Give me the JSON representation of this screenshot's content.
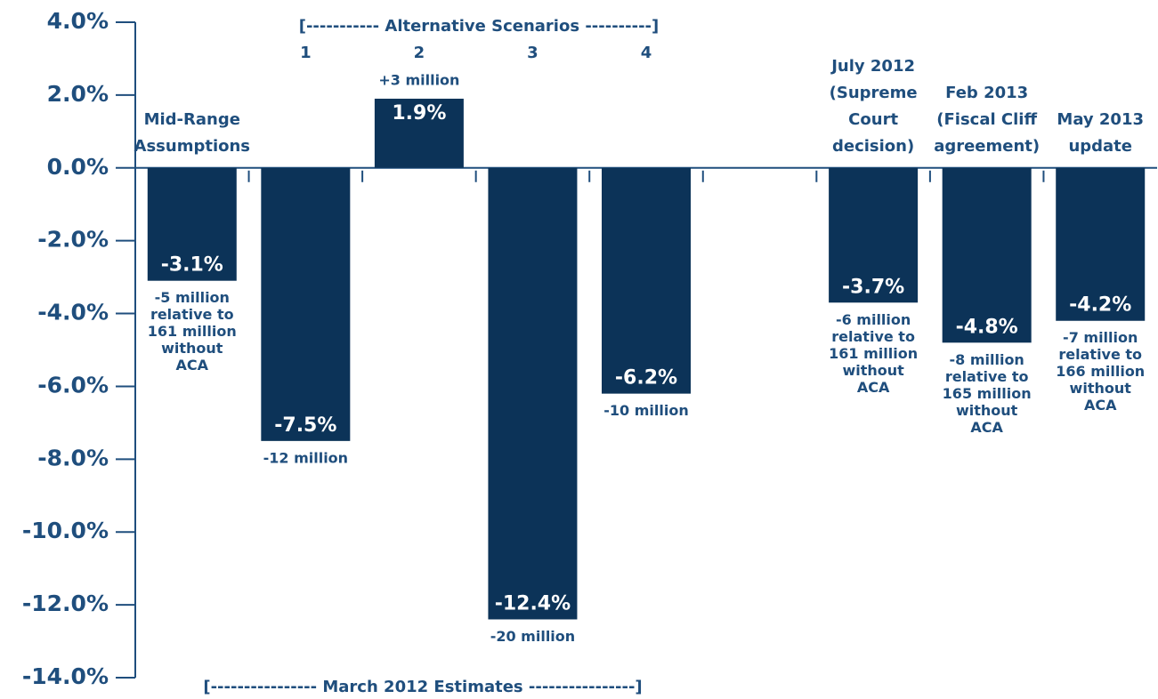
{
  "chart_data": {
    "type": "bar",
    "categories": [
      [
        "Mid-Range",
        "Assumptions"
      ],
      [
        "1"
      ],
      [
        "2"
      ],
      [
        "3"
      ],
      [
        "4"
      ],
      null,
      [
        "July 2012",
        "(Supreme",
        "Court",
        "decision)"
      ],
      [
        "Feb 2013",
        "(Fiscal Cliff",
        "agreement)"
      ],
      [
        "May 2013",
        "update"
      ]
    ],
    "values": [
      -3.1,
      -7.5,
      1.9,
      -12.4,
      -6.2,
      null,
      -3.7,
      -4.8,
      -4.2
    ],
    "value_labels": [
      "-3.1%",
      "-7.5%",
      "1.9%",
      "-12.4%",
      "-6.2%",
      null,
      "-3.7%",
      "-4.8%",
      "-4.2%"
    ],
    "notes": [
      [
        "-5 million",
        "relative to",
        "161 million",
        "without",
        "ACA"
      ],
      [
        "-12 million"
      ],
      [
        "+3 million"
      ],
      [
        "-20 million"
      ],
      [
        "-10 million"
      ],
      null,
      [
        "-6 million",
        "relative to",
        "161 million",
        "without",
        "ACA"
      ],
      [
        "-8 million",
        "relative to",
        "165 million",
        "without",
        "ACA"
      ],
      [
        "-7 million",
        "relative to",
        "166 million",
        "without",
        "ACA"
      ]
    ],
    "annotations": [
      "[----------- Alternative Scenarios ----------]",
      "[---------------- March 2012 Estimates ----------------]"
    ],
    "color": "#0c3358",
    "ylim": [
      -14,
      4
    ],
    "yticks": [
      {
        "value": 4,
        "label": "4.0%"
      },
      {
        "value": 2,
        "label": "2.0%"
      },
      {
        "value": 0,
        "label": "0.0%"
      },
      {
        "value": -2,
        "label": "-2.0%"
      },
      {
        "value": -4,
        "label": "-4.0%"
      },
      {
        "value": -6,
        "label": "-6.0%"
      },
      {
        "value": -8,
        "label": "-8.0%"
      },
      {
        "value": -10,
        "label": "-10.0%"
      },
      {
        "value": -12,
        "label": "-12.0%"
      },
      {
        "value": -14,
        "label": "-14.0%"
      }
    ]
  }
}
